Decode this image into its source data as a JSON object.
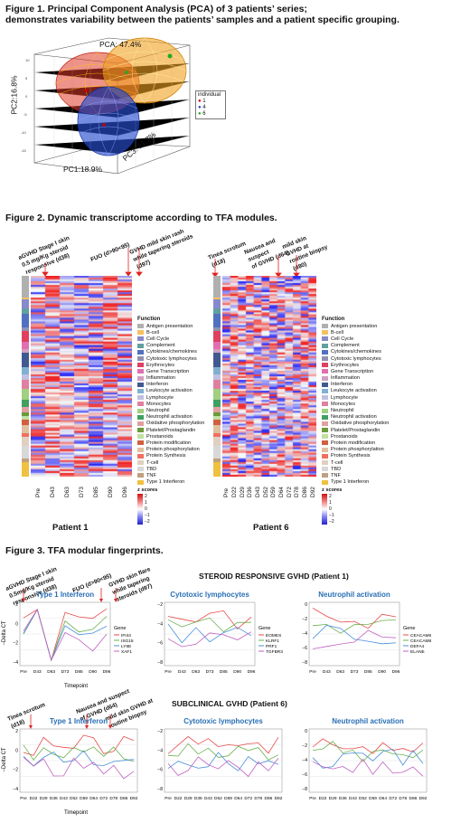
{
  "figure1": {
    "title_line1": "Figure 1. Principal Component Analysis (PCA) of 3 patients’ series;",
    "title_line2": "demonstrates variability between the patients’ samples and a patient specific grouping.",
    "pca_label": "PCA: 47.4%",
    "pc1_label": "PC1:18.9%",
    "pc2_label": "PC2:16.8%",
    "pc3_label": "PC3: 11.7%",
    "legend_title": "individual",
    "legend_items": [
      {
        "label": "1",
        "color": "#cc0000"
      },
      {
        "label": "4",
        "color": "#2244cc"
      },
      {
        "label": "6",
        "color": "#22aa22"
      }
    ],
    "colors": {
      "red": "#e03a2a",
      "orange": "#f0a020",
      "blue": "#2a4fd0"
    }
  },
  "figure2": {
    "title": "Figure 2. Dynamic transcriptome according to TFA modules.",
    "patient1": {
      "label": "Patient 1",
      "annotations": [
        "aGVHD Stage I skin",
        "0.5 mg/Kg steroid",
        "responsive (d38)",
        "FUO (d>90<95)",
        "GVHD mild skin rash",
        "while tapering steroids",
        "(d97)"
      ],
      "columns": [
        "Pre",
        "D43",
        "D63",
        "D73",
        "D85",
        "D90",
        "D96"
      ]
    },
    "patient6": {
      "label": "Patient 6",
      "annotations": [
        "Tinea scrotum",
        "(d18)",
        "Nausea and",
        "suspect",
        "of GVHD (d64)",
        "mild skin",
        "GVHD at",
        "routine biopsy",
        "(d80)"
      ],
      "columns": [
        "Pre",
        "D22",
        "D29",
        "D36",
        "D43",
        "D52",
        "D59",
        "D64",
        "D72",
        "D78",
        "D86",
        "D92"
      ]
    },
    "legend_title": "Function",
    "functions": [
      {
        "label": "Antigen presentation",
        "color": "#b0b0b0"
      },
      {
        "label": "B-cell",
        "color": "#f5c060"
      },
      {
        "label": "Cell Cycle",
        "color": "#8888cc"
      },
      {
        "label": "Complement",
        "color": "#60a0a0"
      },
      {
        "label": "Cytokines/chemokines",
        "color": "#5070c0"
      },
      {
        "label": "Cytotoxic lymphocytes",
        "color": "#9090b0"
      },
      {
        "label": "Erythrocytes",
        "color": "#e04060"
      },
      {
        "label": "Gene Transcription",
        "color": "#e070b0"
      },
      {
        "label": "Inflammation",
        "color": "#d0a0c0"
      },
      {
        "label": "Interferon",
        "color": "#405a90"
      },
      {
        "label": "Leukocyte activation",
        "color": "#80b0d0"
      },
      {
        "label": "Lymphocyte",
        "color": "#c0c0e0"
      },
      {
        "label": "Monocytes",
        "color": "#e080a0"
      },
      {
        "label": "Neutrophil",
        "color": "#a0d080"
      },
      {
        "label": "Neutrophil activation",
        "color": "#40a060"
      },
      {
        "label": "Oxidative phosphorylation",
        "color": "#e0a0a0"
      },
      {
        "label": "Platelet/Prostaglandin",
        "color": "#6a9a3a"
      },
      {
        "label": "Prostanoids",
        "color": "#c0e0a0"
      },
      {
        "label": "Protein modification",
        "color": "#d06040"
      },
      {
        "label": "Protein phosphorylation",
        "color": "#e0c0a0"
      },
      {
        "label": "Protein Synthesis",
        "color": "#f07060"
      },
      {
        "label": "T-cell",
        "color": "#e0d0c0"
      },
      {
        "label": "TBD",
        "color": "#d8d8d8"
      },
      {
        "label": "TNF",
        "color": "#c0a080"
      },
      {
        "label": "Type 1 Interferon",
        "color": "#f0c040"
      }
    ],
    "zscore_title": "z scores",
    "zscore_ticks": [
      "2",
      "1",
      "0",
      "−1",
      "−2"
    ]
  },
  "figure3": {
    "title": "Figure 3. TFA modular fingerprints.",
    "section1": {
      "heading": "STEROID RESPONSIVE GVHD (Patient 1)",
      "annotations": [
        "aGVHD Stage I skin",
        "0.5mg/Kg steroid",
        "responsive (d38)",
        "FUO (d>90<95)",
        "GVHD skin flare",
        "while tapering",
        "steroids (d97)"
      ],
      "ylabel": "−Delta CT",
      "xlabel": "Timepoint",
      "panels": [
        {
          "title": "Type 1 Interferon",
          "gene_title": "Gene",
          "genes": [
            "IFI44",
            "ISG15",
            "LY6E",
            "XAF1"
          ],
          "yticks": [
            "2",
            "0",
            "−2",
            "−4"
          ]
        },
        {
          "title": "Cytotoxic lymphocytes",
          "gene_title": "Gene",
          "genes": [
            "EOMES",
            "KLRF1",
            "PRF1",
            "TGFBR3"
          ],
          "yticks": [
            "−2",
            "−4",
            "−6",
            "−8"
          ]
        },
        {
          "title": "Neutrophil activation",
          "gene_title": "Gene",
          "genes": [
            "CEACAM6",
            "CEACAM8",
            "DEFA4",
            "ELANE"
          ],
          "yticks": [
            "0",
            "−2",
            "−4",
            "−6",
            "−8"
          ]
        }
      ],
      "xticks": [
        "Pre",
        "D43",
        "D63",
        "D73",
        "D85",
        "D90",
        "D96"
      ]
    },
    "section2": {
      "heading": "SUBCLINICAL GVHD (Patient 6)",
      "annotations": [
        "Tinea scrotum",
        "(d18)",
        "Nausea and suspect",
        "of GVHD (d64)",
        "mild skin GVHD at",
        "routine biopsy"
      ],
      "ylabel": "−Delta CT",
      "xlabel": "Timepoint",
      "panels": [
        {
          "title": "Type 1 Interferon",
          "yticks": [
            "2",
            "0",
            "−2",
            "−4"
          ]
        },
        {
          "title": "Cytotoxic lymphocytes",
          "yticks": [
            "−2",
            "−4",
            "−6",
            "−8"
          ]
        },
        {
          "title": "Neutrophil activation",
          "yticks": [
            "0",
            "−2",
            "−4",
            "−6",
            "−8"
          ]
        }
      ],
      "xticks": [
        "Pre",
        "D22",
        "D29",
        "D36",
        "D43",
        "D52",
        "D59",
        "D64",
        "D72",
        "D78",
        "D86",
        "D92"
      ]
    },
    "line_colors": [
      "#e84a4a",
      "#6ab04c",
      "#4a90d9",
      "#c060c0"
    ],
    "title_color": "#2a6fb5"
  }
}
